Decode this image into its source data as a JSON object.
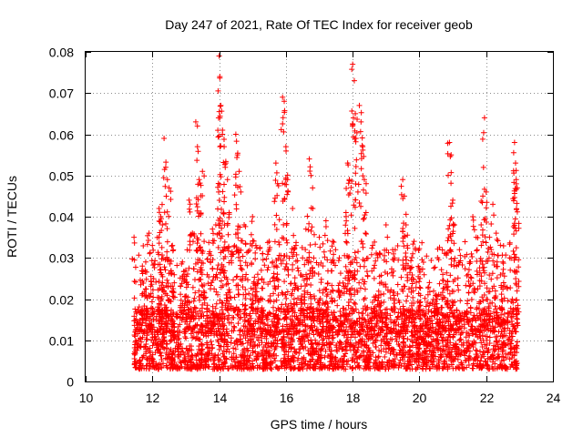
{
  "chart_data": {
    "type": "scatter",
    "title": "Day 247 of 2021, Rate Of TEC Index for receiver geob",
    "xlabel": "GPS time / hours",
    "ylabel": "ROTI / TECUs",
    "xlim": [
      10,
      24
    ],
    "ylim": [
      0,
      0.08
    ],
    "x_ticks": [
      10,
      12,
      14,
      16,
      18,
      20,
      22,
      24
    ],
    "x_tick_labels": [
      "10",
      "12",
      "14",
      "16",
      "18",
      "20",
      "22",
      "24"
    ],
    "y_ticks": [
      0,
      0.01,
      0.02,
      0.03,
      0.04,
      0.05,
      0.06,
      0.07,
      0.08
    ],
    "y_tick_labels": [
      "0",
      "0.01",
      "0.02",
      "0.03",
      "0.04",
      "0.05",
      "0.06",
      "0.07",
      "0.08"
    ],
    "grid": true,
    "marker": "+",
    "color": "#ff0000",
    "series": [
      {
        "name": "ROTI",
        "x_start": 11.45,
        "x_end": 22.95,
        "baseline_range": [
          0.003,
          0.018
        ],
        "points": [
          {
            "x": 11.45,
            "y": 0.035
          },
          {
            "x": 11.7,
            "y": 0.028
          },
          {
            "x": 11.8,
            "y": 0.029
          },
          {
            "x": 11.9,
            "y": 0.036
          },
          {
            "x": 12.0,
            "y": 0.033
          },
          {
            "x": 12.2,
            "y": 0.042
          },
          {
            "x": 12.25,
            "y": 0.04
          },
          {
            "x": 12.3,
            "y": 0.038
          },
          {
            "x": 12.35,
            "y": 0.059
          },
          {
            "x": 12.4,
            "y": 0.052
          },
          {
            "x": 12.45,
            "y": 0.049
          },
          {
            "x": 12.5,
            "y": 0.047
          },
          {
            "x": 12.6,
            "y": 0.033
          },
          {
            "x": 12.9,
            "y": 0.029
          },
          {
            "x": 13.0,
            "y": 0.027
          },
          {
            "x": 13.1,
            "y": 0.044
          },
          {
            "x": 13.2,
            "y": 0.036
          },
          {
            "x": 13.3,
            "y": 0.063
          },
          {
            "x": 13.35,
            "y": 0.057
          },
          {
            "x": 13.4,
            "y": 0.049
          },
          {
            "x": 13.5,
            "y": 0.051
          },
          {
            "x": 13.55,
            "y": 0.034
          },
          {
            "x": 13.7,
            "y": 0.031
          },
          {
            "x": 13.8,
            "y": 0.037
          },
          {
            "x": 13.9,
            "y": 0.038
          },
          {
            "x": 14.0,
            "y": 0.079
          },
          {
            "x": 14.02,
            "y": 0.074
          },
          {
            "x": 14.05,
            "y": 0.067
          },
          {
            "x": 14.1,
            "y": 0.061
          },
          {
            "x": 14.15,
            "y": 0.057
          },
          {
            "x": 14.2,
            "y": 0.053
          },
          {
            "x": 14.25,
            "y": 0.049
          },
          {
            "x": 14.3,
            "y": 0.041
          },
          {
            "x": 14.5,
            "y": 0.06
          },
          {
            "x": 14.55,
            "y": 0.055
          },
          {
            "x": 14.6,
            "y": 0.051
          },
          {
            "x": 14.65,
            "y": 0.046
          },
          {
            "x": 14.75,
            "y": 0.038
          },
          {
            "x": 15.0,
            "y": 0.04
          },
          {
            "x": 15.1,
            "y": 0.033
          },
          {
            "x": 15.3,
            "y": 0.031
          },
          {
            "x": 15.5,
            "y": 0.034
          },
          {
            "x": 15.6,
            "y": 0.029
          },
          {
            "x": 15.7,
            "y": 0.053
          },
          {
            "x": 15.75,
            "y": 0.048
          },
          {
            "x": 15.9,
            "y": 0.069
          },
          {
            "x": 15.95,
            "y": 0.068
          },
          {
            "x": 16.0,
            "y": 0.057
          },
          {
            "x": 16.05,
            "y": 0.049
          },
          {
            "x": 16.2,
            "y": 0.042
          },
          {
            "x": 16.3,
            "y": 0.033
          },
          {
            "x": 16.5,
            "y": 0.03
          },
          {
            "x": 16.6,
            "y": 0.037
          },
          {
            "x": 16.7,
            "y": 0.054
          },
          {
            "x": 16.75,
            "y": 0.05
          },
          {
            "x": 16.8,
            "y": 0.047
          },
          {
            "x": 17.0,
            "y": 0.035
          },
          {
            "x": 17.2,
            "y": 0.039
          },
          {
            "x": 17.4,
            "y": 0.034
          },
          {
            "x": 17.6,
            "y": 0.03
          },
          {
            "x": 17.8,
            "y": 0.041
          },
          {
            "x": 17.85,
            "y": 0.053
          },
          {
            "x": 17.9,
            "y": 0.049
          },
          {
            "x": 18.0,
            "y": 0.077
          },
          {
            "x": 18.05,
            "y": 0.073
          },
          {
            "x": 18.08,
            "y": 0.065
          },
          {
            "x": 18.1,
            "y": 0.059
          },
          {
            "x": 18.2,
            "y": 0.067
          },
          {
            "x": 18.25,
            "y": 0.063
          },
          {
            "x": 18.3,
            "y": 0.057
          },
          {
            "x": 18.35,
            "y": 0.049
          },
          {
            "x": 18.4,
            "y": 0.041
          },
          {
            "x": 18.6,
            "y": 0.033
          },
          {
            "x": 18.8,
            "y": 0.031
          },
          {
            "x": 19.0,
            "y": 0.038
          },
          {
            "x": 19.2,
            "y": 0.032
          },
          {
            "x": 19.5,
            "y": 0.049
          },
          {
            "x": 19.55,
            "y": 0.045
          },
          {
            "x": 19.6,
            "y": 0.038
          },
          {
            "x": 19.8,
            "y": 0.031
          },
          {
            "x": 20.0,
            "y": 0.027
          },
          {
            "x": 20.3,
            "y": 0.024
          },
          {
            "x": 20.5,
            "y": 0.021
          },
          {
            "x": 20.7,
            "y": 0.026
          },
          {
            "x": 20.8,
            "y": 0.031
          },
          {
            "x": 20.9,
            "y": 0.058
          },
          {
            "x": 20.95,
            "y": 0.055
          },
          {
            "x": 21.0,
            "y": 0.044
          },
          {
            "x": 21.05,
            "y": 0.038
          },
          {
            "x": 21.2,
            "y": 0.032
          },
          {
            "x": 21.5,
            "y": 0.029
          },
          {
            "x": 21.6,
            "y": 0.04
          },
          {
            "x": 21.7,
            "y": 0.035
          },
          {
            "x": 21.85,
            "y": 0.038
          },
          {
            "x": 21.9,
            "y": 0.045
          },
          {
            "x": 21.95,
            "y": 0.064
          },
          {
            "x": 22.0,
            "y": 0.046
          },
          {
            "x": 22.1,
            "y": 0.035
          },
          {
            "x": 22.2,
            "y": 0.043
          },
          {
            "x": 22.3,
            "y": 0.036
          },
          {
            "x": 22.5,
            "y": 0.029
          },
          {
            "x": 22.7,
            "y": 0.03
          },
          {
            "x": 22.85,
            "y": 0.058
          },
          {
            "x": 22.88,
            "y": 0.053
          },
          {
            "x": 22.9,
            "y": 0.049
          },
          {
            "x": 22.93,
            "y": 0.047
          }
        ]
      }
    ]
  }
}
